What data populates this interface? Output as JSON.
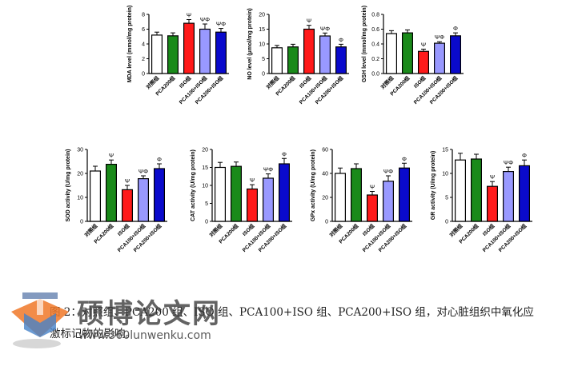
{
  "categories": [
    "对照组",
    "PCA200组",
    "ISO组",
    "PCA100+ISO组",
    "PCA200+ISO组"
  ],
  "colors": {
    "series": [
      "#ffffff",
      "#1a8a1a",
      "#ff1a1a",
      "#9999ff",
      "#0a0acc"
    ],
    "axis": "#000000"
  },
  "chart_data": [
    {
      "type": "bar",
      "title": "",
      "xlabel": "",
      "ylabel": "MDA level (mmol/mg protein)",
      "categories": [
        "对照组",
        "PCA200组",
        "ISO组",
        "PCA100+ISO组",
        "PCA200+ISO组"
      ],
      "values": [
        5.2,
        5.1,
        6.8,
        6.0,
        5.6
      ],
      "errors": [
        0.4,
        0.4,
        0.5,
        0.7,
        0.5
      ],
      "marks": [
        "",
        "",
        "Ψ",
        "ΨΦ",
        "ΨΦ"
      ],
      "ylim": [
        0,
        8
      ],
      "yticks": [
        "0",
        "2",
        "4",
        "6",
        "8"
      ]
    },
    {
      "type": "bar",
      "title": "",
      "xlabel": "",
      "ylabel": "NO level (μmol/mg protein)",
      "categories": [
        "对照组",
        "PCA200组",
        "ISO组",
        "PCA100+ISO组",
        "PCA200+ISO组"
      ],
      "values": [
        8.7,
        9.0,
        15.0,
        12.7,
        9.0
      ],
      "errors": [
        0.8,
        0.9,
        1.3,
        1.0,
        0.9
      ],
      "marks": [
        "",
        "",
        "Ψ",
        "ΨΦ",
        "Φ"
      ],
      "ylim": [
        0,
        20
      ],
      "yticks": [
        "0",
        "5",
        "10",
        "15",
        "20"
      ]
    },
    {
      "type": "bar",
      "title": "",
      "xlabel": "",
      "ylabel": "GSH level (mmol/mg protein)",
      "categories": [
        "对照组",
        "PCA200组",
        "ISO组",
        "PCA100+ISO组",
        "PCA200+ISO组"
      ],
      "values": [
        0.54,
        0.55,
        0.3,
        0.41,
        0.51
      ],
      "errors": [
        0.04,
        0.04,
        0.03,
        0.02,
        0.04
      ],
      "marks": [
        "",
        "",
        "Ψ",
        "ΨΦ",
        "Φ"
      ],
      "ylim": [
        0,
        0.8
      ],
      "yticks": [
        "0.0",
        "0.2",
        "0.4",
        "0.6",
        "0.8"
      ]
    },
    {
      "type": "bar",
      "title": "",
      "xlabel": "",
      "ylabel": "SOD activity (U/mg protein)",
      "categories": [
        "对照组",
        "PCA200组",
        "ISO组",
        "PCA100+ISO组",
        "PCA200+ISO组"
      ],
      "values": [
        21.0,
        23.8,
        13.2,
        17.8,
        22.0
      ],
      "errors": [
        2.0,
        1.8,
        1.8,
        1.2,
        2.0
      ],
      "marks": [
        "",
        "Ψ",
        "Ψ",
        "ΨΦ",
        "Φ"
      ],
      "ylim": [
        0,
        30
      ],
      "yticks": [
        "0",
        "10",
        "20",
        "30"
      ]
    },
    {
      "type": "bar",
      "title": "",
      "xlabel": "",
      "ylabel": "CAT activity (U/mg protein)",
      "categories": [
        "对照组",
        "PCA200组",
        "ISO组",
        "PCA100+ISO组",
        "PCA200+ISO组"
      ],
      "values": [
        15.0,
        15.3,
        9.0,
        12.0,
        16.0
      ],
      "errors": [
        1.4,
        1.2,
        1.2,
        1.2,
        1.5
      ],
      "marks": [
        "",
        "",
        "Ψ",
        "ΨΦ",
        "Φ"
      ],
      "ylim": [
        0,
        20
      ],
      "yticks": [
        "0",
        "5",
        "10",
        "15",
        "20"
      ]
    },
    {
      "type": "bar",
      "title": "",
      "xlabel": "",
      "ylabel": "GPx activity (U/mg protein)",
      "categories": [
        "对照组",
        "PCA200组",
        "ISO组",
        "PCA100+ISO组",
        "PCA200+ISO组"
      ],
      "values": [
        40.0,
        44.0,
        22.0,
        33.5,
        44.5
      ],
      "errors": [
        4.5,
        4.0,
        3.0,
        4.5,
        4.0
      ],
      "marks": [
        "",
        "",
        "Ψ",
        "ΨΦ",
        "Φ"
      ],
      "ylim": [
        0,
        60
      ],
      "yticks": [
        "0",
        "20",
        "40",
        "60"
      ]
    },
    {
      "type": "bar",
      "title": "",
      "xlabel": "",
      "ylabel": "GR activity (U/mg protein)",
      "categories": [
        "对照组",
        "PCA200组",
        "ISO组",
        "PCA100+ISO组",
        "PCA200+ISO组"
      ],
      "values": [
        12.8,
        13.0,
        7.3,
        10.4,
        11.6
      ],
      "errors": [
        1.4,
        1.0,
        1.0,
        0.9,
        1.2
      ],
      "marks": [
        "",
        "",
        "Ψ",
        "ΨΦ",
        "Φ"
      ],
      "ylim": [
        0,
        15
      ],
      "yticks": [
        "0",
        "5",
        "10",
        "15"
      ]
    }
  ],
  "caption": {
    "line1": "图 2：对照组、PCA200 组、ISO 组、PCA100+ISO 组、PCA200+ISO 组，对心脏组织中氧化应",
    "line2": "激标记物的影响。"
  },
  "watermark": {
    "text": "硕博论文网",
    "url": "www.360lunwenku.com",
    "icon": "graduation-cap-icon"
  }
}
